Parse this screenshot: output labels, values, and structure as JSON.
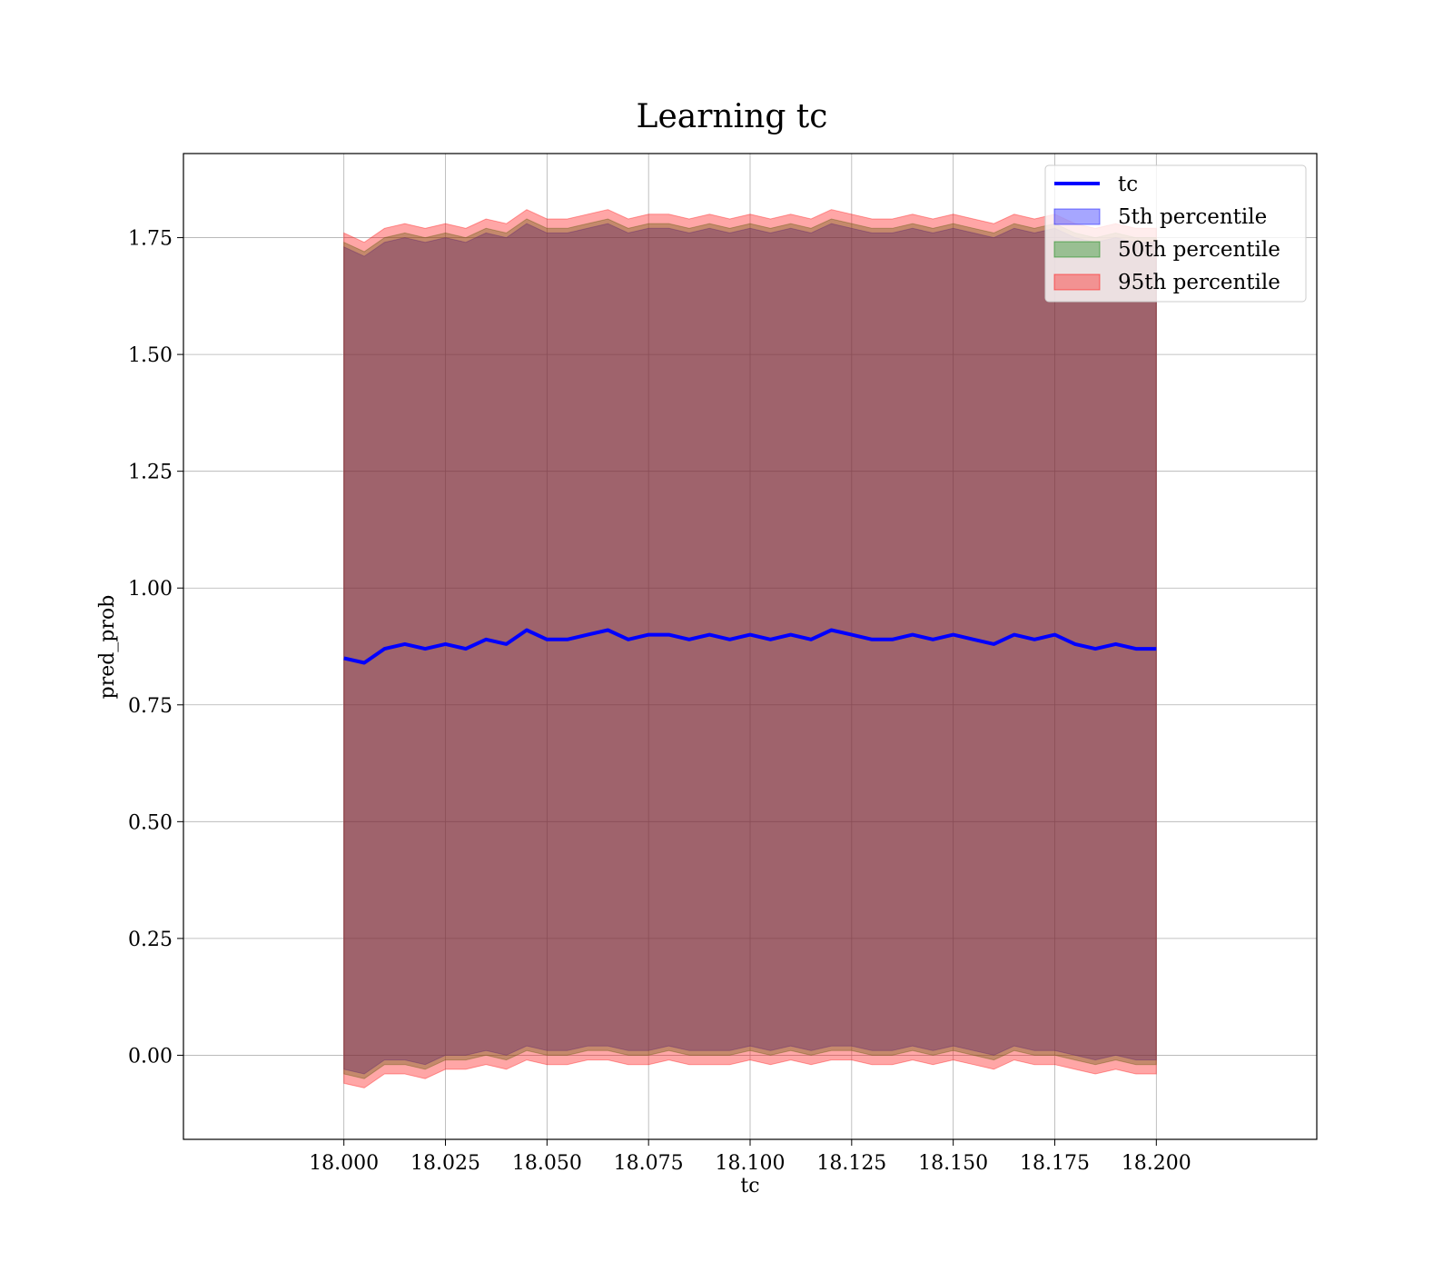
{
  "chart_data": {
    "type": "area",
    "title": "Learning tc",
    "xlabel": "tc",
    "ylabel": "pred_prob",
    "xlim": [
      17.9605,
      18.2395
    ],
    "ylim": [
      -0.18,
      1.93
    ],
    "x_ticks": [
      "18.000",
      "18.025",
      "18.050",
      "18.075",
      "18.100",
      "18.125",
      "18.150",
      "18.175",
      "18.200"
    ],
    "x_tick_values": [
      18.0,
      18.025,
      18.05,
      18.075,
      18.1,
      18.125,
      18.15,
      18.175,
      18.2
    ],
    "y_ticks": [
      "0.00",
      "0.25",
      "0.50",
      "0.75",
      "1.00",
      "1.25",
      "1.50",
      "1.75"
    ],
    "y_tick_values": [
      0.0,
      0.25,
      0.5,
      0.75,
      1.0,
      1.25,
      1.5,
      1.75
    ],
    "grid": true,
    "legend_position": "top-right",
    "x": [
      18.0,
      18.005,
      18.01,
      18.015,
      18.02,
      18.025,
      18.03,
      18.035,
      18.04,
      18.045,
      18.05,
      18.055,
      18.06,
      18.065,
      18.07,
      18.075,
      18.08,
      18.085,
      18.09,
      18.095,
      18.1,
      18.105,
      18.11,
      18.115,
      18.12,
      18.125,
      18.13,
      18.135,
      18.14,
      18.145,
      18.15,
      18.155,
      18.16,
      18.165,
      18.17,
      18.175,
      18.18,
      18.185,
      18.19,
      18.195,
      18.2
    ],
    "series": [
      {
        "name": "tc",
        "kind": "line",
        "color": "#0000ff",
        "values": [
          0.85,
          0.84,
          0.87,
          0.88,
          0.87,
          0.88,
          0.87,
          0.89,
          0.88,
          0.91,
          0.89,
          0.89,
          0.9,
          0.91,
          0.89,
          0.9,
          0.9,
          0.89,
          0.9,
          0.89,
          0.9,
          0.89,
          0.9,
          0.89,
          0.91,
          0.9,
          0.89,
          0.89,
          0.9,
          0.89,
          0.9,
          0.89,
          0.88,
          0.9,
          0.89,
          0.9,
          0.88,
          0.87,
          0.88,
          0.87,
          0.87
        ]
      },
      {
        "name": "5th percentile",
        "kind": "band",
        "color": "#0000ff",
        "lower": [
          -0.03,
          -0.04,
          -0.01,
          -0.01,
          -0.02,
          0.0,
          0.0,
          0.01,
          0.0,
          0.02,
          0.01,
          0.01,
          0.02,
          0.02,
          0.01,
          0.01,
          0.02,
          0.01,
          0.01,
          0.01,
          0.02,
          0.01,
          0.02,
          0.01,
          0.02,
          0.02,
          0.01,
          0.01,
          0.02,
          0.01,
          0.02,
          0.01,
          0.0,
          0.02,
          0.01,
          0.01,
          0.0,
          -0.01,
          0.0,
          -0.01,
          -0.01
        ],
        "upper": [
          1.73,
          1.71,
          1.74,
          1.75,
          1.74,
          1.75,
          1.74,
          1.76,
          1.75,
          1.78,
          1.76,
          1.76,
          1.77,
          1.78,
          1.76,
          1.77,
          1.77,
          1.76,
          1.77,
          1.76,
          1.77,
          1.76,
          1.77,
          1.76,
          1.78,
          1.77,
          1.76,
          1.76,
          1.77,
          1.76,
          1.77,
          1.76,
          1.75,
          1.77,
          1.76,
          1.77,
          1.75,
          1.74,
          1.75,
          1.74,
          1.74
        ]
      },
      {
        "name": "50th percentile",
        "kind": "band",
        "color": "#008000",
        "lower": [
          -0.04,
          -0.05,
          -0.02,
          -0.02,
          -0.03,
          -0.01,
          -0.01,
          0.0,
          -0.01,
          0.01,
          0.0,
          0.0,
          0.01,
          0.01,
          0.0,
          0.0,
          0.01,
          0.0,
          0.0,
          0.0,
          0.01,
          0.0,
          0.01,
          0.0,
          0.01,
          0.01,
          0.0,
          0.0,
          0.01,
          0.0,
          0.01,
          0.0,
          -0.01,
          0.01,
          0.0,
          0.0,
          -0.01,
          -0.02,
          -0.01,
          -0.02,
          -0.02
        ],
        "upper": [
          1.74,
          1.72,
          1.75,
          1.76,
          1.75,
          1.76,
          1.75,
          1.77,
          1.76,
          1.79,
          1.77,
          1.77,
          1.78,
          1.79,
          1.77,
          1.78,
          1.78,
          1.77,
          1.78,
          1.77,
          1.78,
          1.77,
          1.78,
          1.77,
          1.79,
          1.78,
          1.77,
          1.77,
          1.78,
          1.77,
          1.78,
          1.77,
          1.76,
          1.78,
          1.77,
          1.78,
          1.76,
          1.75,
          1.76,
          1.75,
          1.75
        ]
      },
      {
        "name": "95th percentile",
        "kind": "band",
        "color": "#ff0000",
        "lower": [
          -0.06,
          -0.07,
          -0.04,
          -0.04,
          -0.05,
          -0.03,
          -0.03,
          -0.02,
          -0.03,
          -0.01,
          -0.02,
          -0.02,
          -0.01,
          -0.01,
          -0.02,
          -0.02,
          -0.01,
          -0.02,
          -0.02,
          -0.02,
          -0.01,
          -0.02,
          -0.01,
          -0.02,
          -0.01,
          -0.01,
          -0.02,
          -0.02,
          -0.01,
          -0.02,
          -0.01,
          -0.02,
          -0.03,
          -0.01,
          -0.02,
          -0.02,
          -0.03,
          -0.04,
          -0.03,
          -0.04,
          -0.04
        ],
        "upper": [
          1.76,
          1.74,
          1.77,
          1.78,
          1.77,
          1.78,
          1.77,
          1.79,
          1.78,
          1.81,
          1.79,
          1.79,
          1.8,
          1.81,
          1.79,
          1.8,
          1.8,
          1.79,
          1.8,
          1.79,
          1.8,
          1.79,
          1.8,
          1.79,
          1.81,
          1.8,
          1.79,
          1.79,
          1.8,
          1.79,
          1.8,
          1.79,
          1.78,
          1.8,
          1.79,
          1.8,
          1.78,
          1.77,
          1.78,
          1.77,
          1.77
        ]
      }
    ]
  }
}
